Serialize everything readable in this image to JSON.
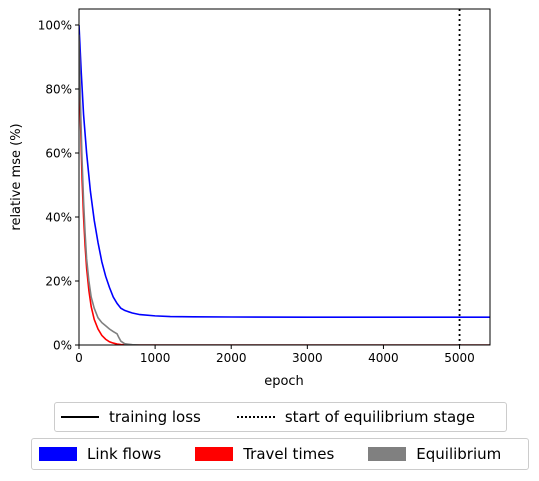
{
  "chart_data": {
    "type": "line",
    "title": "",
    "xlabel": "epoch",
    "ylabel": "relative mse (%)",
    "xlim": [
      0,
      5400
    ],
    "ylim": [
      0,
      105
    ],
    "xticks": [
      "0",
      "1000",
      "2000",
      "3000",
      "4000",
      "5000"
    ],
    "yticks": [
      "0%",
      "20%",
      "40%",
      "60%",
      "80%",
      "100%"
    ],
    "xtick_values": [
      0,
      1000,
      2000,
      3000,
      4000,
      5000
    ],
    "ytick_values": [
      0,
      20,
      40,
      60,
      80,
      100
    ],
    "vline": {
      "x": 5000,
      "style": "dotted",
      "label": "start of equilibrium stage"
    },
    "series": [
      {
        "name": "Link flows",
        "color": "#0000ff",
        "x": [
          0,
          30,
          60,
          100,
          150,
          200,
          250,
          300,
          350,
          400,
          450,
          500,
          550,
          600,
          700,
          800,
          1000,
          1200,
          1500,
          2000,
          3000,
          4000,
          5000,
          5400
        ],
        "y": [
          100,
          85,
          72,
          60,
          48,
          39,
          32,
          26,
          21.5,
          18,
          15,
          13,
          11.5,
          10.8,
          10,
          9.5,
          9.1,
          8.9,
          8.8,
          8.75,
          8.7,
          8.7,
          8.7,
          8.7
        ]
      },
      {
        "name": "Travel times",
        "color": "#ff0000",
        "x": [
          0,
          20,
          40,
          60,
          80,
          100,
          130,
          160,
          200,
          250,
          300,
          350,
          400,
          450,
          500,
          550,
          600,
          700,
          800,
          1000,
          5400
        ],
        "y": [
          95,
          70,
          52,
          40,
          31,
          24,
          17,
          12,
          8,
          5,
          3,
          1.8,
          1,
          0.6,
          0.3,
          0.15,
          0.05,
          0,
          0,
          0,
          0
        ]
      },
      {
        "name": "Equilibrium",
        "color": "#808080",
        "x": [
          0,
          20,
          40,
          60,
          80,
          100,
          130,
          160,
          200,
          250,
          300,
          350,
          400,
          450,
          500,
          520,
          550,
          600,
          700,
          800,
          1000,
          5400
        ],
        "y": [
          97,
          75,
          58,
          45,
          35,
          27,
          20,
          15,
          11.5,
          8.5,
          7,
          6,
          5,
          4.2,
          3.5,
          2.5,
          1.2,
          0.4,
          0.1,
          0,
          0,
          0
        ]
      }
    ]
  },
  "legend_lines": [
    {
      "label": "training loss",
      "style": "solid"
    },
    {
      "label": "start of equilibrium stage",
      "style": "dotted"
    }
  ],
  "legend_patches": [
    {
      "label": "Link flows",
      "color": "#0000ff"
    },
    {
      "label": "Travel times",
      "color": "#ff0000"
    },
    {
      "label": "Equilibrium",
      "color": "#808080"
    }
  ]
}
